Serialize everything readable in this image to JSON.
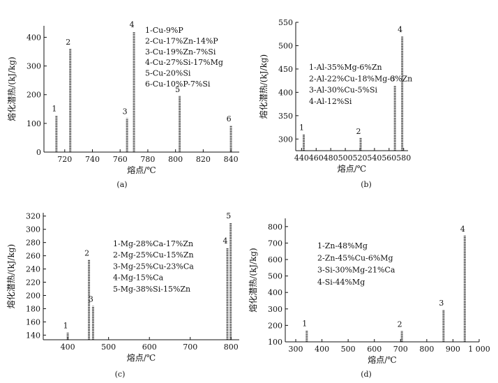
{
  "chart_data": [
    {
      "type": "bar",
      "caption": "(a)",
      "xlabel": "熔点/℃",
      "ylabel": "熔化潜热/(kJ/kg)",
      "xlim": [
        705,
        846
      ],
      "ylim": [
        0,
        440
      ],
      "xticks": [
        720,
        740,
        760,
        780,
        800,
        820,
        840
      ],
      "yticks": [
        0,
        100,
        200,
        300,
        400
      ],
      "grid": false,
      "legend": [
        "1-Cu-9%P",
        "2-Cu-17%Zn-14%P",
        "3-Cu-19%Zn-7%Si",
        "4-Cu-27%Si-17%Mg",
        "5-Cu-20%Si",
        "6-Cu-10%P-7%Si"
      ],
      "series": [
        {
          "label": "1",
          "x": 714,
          "y": 128
        },
        {
          "label": "2",
          "x": 724,
          "y": 360
        },
        {
          "label": "3",
          "x": 765,
          "y": 118
        },
        {
          "label": "4",
          "x": 770,
          "y": 420
        },
        {
          "label": "5",
          "x": 803,
          "y": 195
        },
        {
          "label": "6",
          "x": 840,
          "y": 92
        }
      ]
    },
    {
      "type": "bar",
      "caption": "(b)",
      "xlabel": "熔点/℃",
      "ylabel": "熔化潜热/(kJ/kg)",
      "xlim": [
        432,
        586
      ],
      "ylim": [
        275,
        550
      ],
      "xticks": [
        440,
        460,
        480,
        500,
        520,
        540,
        560,
        580
      ],
      "yticks": [
        300,
        350,
        400,
        450,
        500,
        550
      ],
      "grid": false,
      "legend": [
        "1-Al-35%Mg-6%Zn",
        "2-Al-22%Cu-18%Mg-6%Zn",
        "3-Al-30%Cu-5%Si",
        "4-Al-12%Si"
      ],
      "series": [
        {
          "label": "1",
          "x": 443,
          "y": 310
        },
        {
          "label": "2",
          "x": 521,
          "y": 302
        },
        {
          "label": "3",
          "x": 568,
          "y": 415
        },
        {
          "label": "4",
          "x": 578,
          "y": 520
        }
      ]
    },
    {
      "type": "bar",
      "caption": "(c)",
      "xlabel": "熔点/℃",
      "ylabel": "熔化潜热/(kJ/kg)",
      "xlim": [
        340,
        820
      ],
      "ylim": [
        133,
        325
      ],
      "xticks": [
        400,
        500,
        600,
        700,
        800
      ],
      "yticks": [
        140,
        160,
        180,
        200,
        220,
        240,
        260,
        280,
        300,
        320
      ],
      "grid": false,
      "legend": [
        "1-Mg-28%Ca-17%Zn",
        "2-Mg-25%Cu-15%Zn",
        "3-Mg-25%Cu-23%Ca",
        "4-Mg-15%Ca",
        "5-Mg-38%Si-15%Zn"
      ],
      "series": [
        {
          "label": "1",
          "x": 400,
          "y": 144
        },
        {
          "label": "2",
          "x": 452,
          "y": 254
        },
        {
          "label": "3",
          "x": 462,
          "y": 184
        },
        {
          "label": "4",
          "x": 791,
          "y": 272
        },
        {
          "label": "5",
          "x": 799,
          "y": 310
        }
      ]
    },
    {
      "type": "bar",
      "caption": "(d)",
      "xlabel": "熔点/℃",
      "ylabel": "熔化潜热/(kJ/kg)",
      "xlim": [
        260,
        1000
      ],
      "ylim": [
        100,
        850
      ],
      "xticks": [
        300,
        400,
        500,
        600,
        700,
        800,
        900,
        1000
      ],
      "xticklabels": [
        "300",
        "400",
        "500",
        "600",
        "700",
        "800",
        "900",
        "1 000"
      ],
      "yticks": [
        100,
        200,
        300,
        400,
        500,
        600,
        700,
        800
      ],
      "grid": false,
      "legend": [
        "1-Zn-48%Mg",
        "2-Zn-45%Cu-6%Mg",
        "3-Si-30%Mg-21%Ca",
        "4-Si-44%Mg"
      ],
      "series": [
        {
          "label": "1",
          "x": 342,
          "y": 170
        },
        {
          "label": "2",
          "x": 705,
          "y": 165
        },
        {
          "label": "3",
          "x": 864,
          "y": 295
        },
        {
          "label": "4",
          "x": 945,
          "y": 745
        }
      ]
    }
  ]
}
